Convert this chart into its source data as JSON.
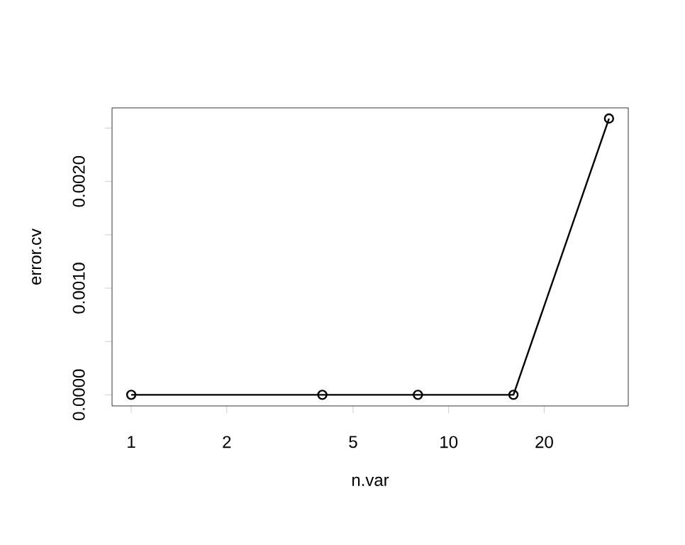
{
  "chart_data": {
    "type": "line",
    "xlabel": "n.var",
    "ylabel": "error.cv",
    "x": [
      1,
      4,
      8,
      16,
      32
    ],
    "values": [
      0,
      0,
      0,
      0,
      0.00259
    ],
    "color": "#000000",
    "marker": "circle",
    "line_style": "solid",
    "log": "x",
    "xlim": [
      0.87,
      36.8
    ],
    "ylim": [
      -0.000104,
      0.00269
    ],
    "xticks": [
      1,
      2,
      5,
      10,
      20
    ],
    "yticks": [
      {
        "value": 0,
        "label": "0.0000"
      },
      {
        "value": 0.0005,
        "label": null
      },
      {
        "value": 0.001,
        "label": "0.0010"
      },
      {
        "value": 0.0015,
        "label": null
      },
      {
        "value": 0.002,
        "label": "0.0020"
      },
      {
        "value": 0.0025,
        "label": null
      }
    ],
    "grid": false
  }
}
